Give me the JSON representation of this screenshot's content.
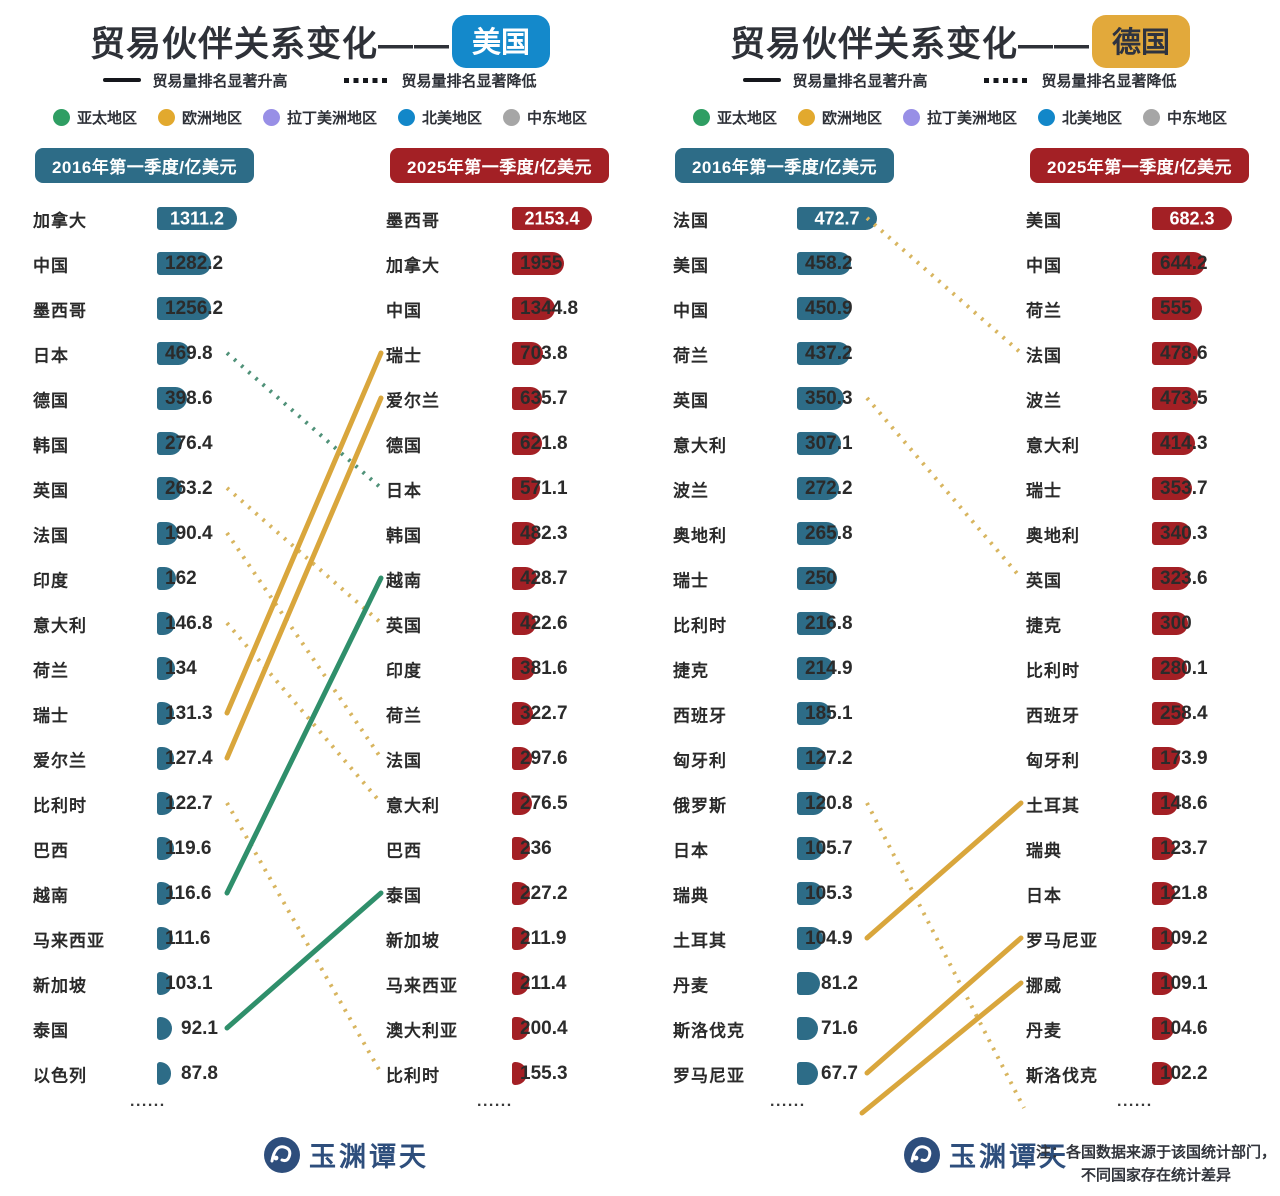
{
  "misc": {
    "ellipsis": "......"
  },
  "logo": {
    "text": "玉渊谭天"
  },
  "note": {
    "line1": "注：各国数据来源于该国统计部门，",
    "line2": "不同国家存在统计差异"
  },
  "legend": {
    "up_label": "贸易量排名显著升高",
    "down_label": "贸易量排名显著降低",
    "regions": [
      {
        "label": "亚太地区",
        "color": "#2F9E63"
      },
      {
        "label": "欧洲地区",
        "color": "#E2A92E"
      },
      {
        "label": "拉丁美洲地区",
        "color": "#988FE6"
      },
      {
        "label": "北美地区",
        "color": "#1287C9"
      },
      {
        "label": "中东地区",
        "color": "#A6A6A6"
      }
    ]
  },
  "colors": {
    "bar_2016": "#2D6C87",
    "bar_2025": "#A32025",
    "title_text": "#2E3138",
    "link": {
      "亚太地区": {
        "up": "#2F8F6B",
        "down": "#4F9178"
      },
      "欧洲地区": {
        "up": "#D9A63C",
        "down": "#D8B55F"
      }
    }
  },
  "panels": [
    {
      "title": "贸易伙伴关系变化——",
      "badge": "美国",
      "badge_bg": "#1489CB",
      "badge_fg": "#FFFFFF",
      "col2016_header": "2016年第一季度/亿美元",
      "col2025_header": "2025年第一季度/亿美元"
    },
    {
      "title": "贸易伙伴关系变化——",
      "badge": "德国",
      "badge_bg": "#E2A93B",
      "badge_fg": "#2E3340",
      "col2016_header": "2016年第一季度/亿美元",
      "col2025_header": "2025年第一季度/亿美元"
    }
  ],
  "chart_data": [
    {
      "type": "bar",
      "title": "贸易伙伴关系变化——美国",
      "unit": "亿美元",
      "series": [
        {
          "name": "2016年第一季度/亿美元",
          "categories": [
            "加拿大",
            "中国",
            "墨西哥",
            "日本",
            "德国",
            "韩国",
            "英国",
            "法国",
            "印度",
            "意大利",
            "荷兰",
            "瑞士",
            "爱尔兰",
            "比利时",
            "巴西",
            "越南",
            "马来西亚",
            "新加坡",
            "泰国",
            "以色列"
          ],
          "values": [
            1311.2,
            1282.2,
            1256.2,
            469.8,
            398.6,
            276.4,
            263.2,
            190.4,
            162,
            146.8,
            134,
            131.3,
            127.4,
            122.7,
            119.6,
            116.6,
            111.6,
            103.1,
            92.1,
            87.8
          ]
        },
        {
          "name": "2025年第一季度/亿美元",
          "categories": [
            "墨西哥",
            "加拿大",
            "中国",
            "瑞士",
            "爱尔兰",
            "德国",
            "日本",
            "韩国",
            "越南",
            "英国",
            "印度",
            "荷兰",
            "法国",
            "意大利",
            "巴西",
            "泰国",
            "新加坡",
            "马来西亚",
            "澳大利亚",
            "比利时"
          ],
          "values": [
            2153.4,
            1955,
            1344.8,
            703.8,
            635.7,
            621.8,
            571.1,
            482.3,
            428.7,
            422.6,
            381.6,
            322.7,
            297.6,
            276.5,
            236,
            227.2,
            211.9,
            211.4,
            200.4,
            155.3
          ]
        }
      ],
      "links": [
        {
          "country": "日本",
          "from_rank": 4,
          "to_rank": 7,
          "trend": "down",
          "region": "亚太地区"
        },
        {
          "country": "英国",
          "from_rank": 7,
          "to_rank": 10,
          "trend": "down",
          "region": "欧洲地区"
        },
        {
          "country": "法国",
          "from_rank": 8,
          "to_rank": 13,
          "trend": "down",
          "region": "欧洲地区"
        },
        {
          "country": "意大利",
          "from_rank": 10,
          "to_rank": 14,
          "trend": "down",
          "region": "欧洲地区"
        },
        {
          "country": "比利时",
          "from_rank": 14,
          "to_rank": 20,
          "trend": "down",
          "region": "欧洲地区"
        },
        {
          "country": "瑞士",
          "from_rank": 12,
          "to_rank": 4,
          "trend": "up",
          "region": "欧洲地区"
        },
        {
          "country": "爱尔兰",
          "from_rank": 13,
          "to_rank": 5,
          "trend": "up",
          "region": "欧洲地区"
        },
        {
          "country": "越南",
          "from_rank": 16,
          "to_rank": 9,
          "trend": "up",
          "region": "亚太地区"
        },
        {
          "country": "泰国",
          "from_rank": 19,
          "to_rank": 16,
          "trend": "up",
          "region": "亚太地区"
        }
      ]
    },
    {
      "type": "bar",
      "title": "贸易伙伴关系变化——德国",
      "unit": "亿美元",
      "series": [
        {
          "name": "2016年第一季度/亿美元",
          "categories": [
            "法国",
            "美国",
            "中国",
            "荷兰",
            "英国",
            "意大利",
            "波兰",
            "奥地利",
            "瑞士",
            "比利时",
            "捷克",
            "西班牙",
            "匈牙利",
            "俄罗斯",
            "日本",
            "瑞典",
            "土耳其",
            "丹麦",
            "斯洛伐克",
            "罗马尼亚"
          ],
          "values": [
            472.7,
            458.2,
            450.9,
            437.2,
            350.3,
            307.1,
            272.2,
            265.8,
            250,
            216.8,
            214.9,
            185.1,
            127.2,
            120.8,
            105.7,
            105.3,
            104.9,
            81.2,
            71.6,
            67.7
          ]
        },
        {
          "name": "2025年第一季度/亿美元",
          "categories": [
            "美国",
            "中国",
            "荷兰",
            "法国",
            "波兰",
            "意大利",
            "瑞士",
            "奥地利",
            "英国",
            "捷克",
            "比利时",
            "西班牙",
            "匈牙利",
            "土耳其",
            "瑞典",
            "日本",
            "罗马尼亚",
            "挪威",
            "丹麦",
            "斯洛伐克"
          ],
          "values": [
            682.3,
            644.2,
            555,
            478.6,
            473.5,
            414.3,
            353.7,
            340.3,
            323.6,
            300,
            280.1,
            258.4,
            173.9,
            148.6,
            123.7,
            121.8,
            109.2,
            109.1,
            104.6,
            102.2
          ]
        }
      ],
      "links": [
        {
          "country": "法国",
          "from_rank": 1,
          "to_rank": 4,
          "trend": "down",
          "region": "欧洲地区"
        },
        {
          "country": "英国",
          "from_rank": 5,
          "to_rank": 9,
          "trend": "down",
          "region": "欧洲地区"
        },
        {
          "country": "俄罗斯",
          "from_rank": 14,
          "to_rank": null,
          "trend": "down",
          "region": "欧洲地区"
        },
        {
          "country": "土耳其",
          "from_rank": 17,
          "to_rank": 14,
          "trend": "up",
          "region": "欧洲地区"
        },
        {
          "country": "罗马尼亚",
          "from_rank": 20,
          "to_rank": 17,
          "trend": "up",
          "region": "欧洲地区"
        },
        {
          "country": "挪威",
          "from_rank": null,
          "to_rank": 18,
          "trend": "up",
          "region": "欧洲地区"
        }
      ]
    }
  ]
}
